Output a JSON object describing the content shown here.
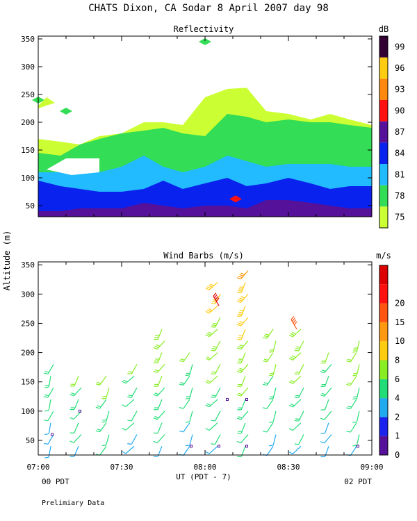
{
  "header": {
    "title": "CHATS Dixon, CA  Sodar   8 April 2007  day  98",
    "ylabel": "Altitude (m)",
    "xlabel": "UT  (PDT - 7)",
    "left_local": "00 PDT",
    "right_local": "02 PDT",
    "footnote": "Prelimiary Data"
  },
  "chart_data": [
    {
      "type": "heatmap",
      "title": "Reflectivity",
      "colorbar_unit": "dB",
      "x_ticks": [
        "07:00",
        "07:30",
        "08:00",
        "08:30",
        "09:00"
      ],
      "xlim": [
        "07:00",
        "09:00"
      ],
      "y_ticks": [
        50,
        100,
        150,
        200,
        250,
        300,
        350
      ],
      "ylim": [
        30,
        355
      ],
      "colorbar_levels": [
        75,
        78,
        81,
        84,
        87,
        90,
        93,
        96,
        99
      ],
      "colorbar_colors": [
        "#ccff33",
        "#33dd55",
        "#22bbff",
        "#0a22ee",
        "#551199",
        "#ff1111",
        "#ff8811",
        "#ffcc11",
        "#330033"
      ],
      "times": [
        "07:00",
        "07:08",
        "07:15",
        "07:22",
        "07:30",
        "07:38",
        "07:45",
        "07:52",
        "08:00",
        "08:08",
        "08:15",
        "08:22",
        "08:30",
        "08:38",
        "08:45",
        "08:52",
        "09:00"
      ],
      "layers": [
        {
          "level": 75,
          "top": [
            170,
            165,
            160,
            175,
            180,
            200,
            200,
            195,
            245,
            260,
            262,
            220,
            215,
            205,
            215,
            205,
            195
          ]
        },
        {
          "level": 78,
          "top": [
            145,
            140,
            160,
            170,
            180,
            185,
            190,
            180,
            175,
            215,
            210,
            200,
            205,
            200,
            200,
            195,
            190
          ]
        },
        {
          "level": 81,
          "top": [
            110,
            110,
            115,
            110,
            120,
            140,
            120,
            110,
            120,
            140,
            130,
            120,
            125,
            125,
            125,
            120,
            120
          ]
        },
        {
          "level": 84,
          "top": [
            95,
            85,
            80,
            75,
            75,
            80,
            95,
            80,
            90,
            100,
            85,
            90,
            100,
            90,
            80,
            85,
            85
          ]
        },
        {
          "level": 87,
          "top": [
            40,
            40,
            45,
            45,
            45,
            55,
            50,
            45,
            50,
            50,
            45,
            60,
            60,
            55,
            50,
            45,
            45
          ]
        }
      ],
      "patches": [
        {
          "level": 84,
          "time": "07:45",
          "alt": 65
        },
        {
          "level": 90,
          "time": "08:11",
          "alt": 62
        },
        {
          "level": 78,
          "time": "08:00",
          "alt": 345
        },
        {
          "level": 78,
          "time": "07:00",
          "alt": 240
        },
        {
          "level": 78,
          "time": "07:10",
          "alt": 220
        }
      ]
    },
    {
      "type": "scatter",
      "subtype": "wind-barbs",
      "title": "Wind Barbs (m/s)",
      "colorbar_unit": "m/s",
      "x_ticks": [
        "07:00",
        "07:30",
        "08:00",
        "08:30",
        "09:00"
      ],
      "xlim": [
        "07:00",
        "09:00"
      ],
      "y_ticks": [
        50,
        100,
        150,
        200,
        250,
        300,
        350
      ],
      "ylim": [
        25,
        355
      ],
      "colorbar_levels": [
        0,
        1,
        2,
        4,
        6,
        8,
        10,
        15,
        20
      ],
      "colorbar_colors": [
        "#551199",
        "#1a22ee",
        "#22aaee",
        "#22dd77",
        "#88ee22",
        "#ffcc11",
        "#ff9911",
        "#ff5511",
        "#ff1111",
        "#dd0000"
      ],
      "profiles": [
        "07:05",
        "07:15",
        "07:25",
        "07:35",
        "07:45",
        "07:55",
        "08:05",
        "08:15",
        "08:25",
        "08:35",
        "08:45",
        "08:55"
      ],
      "max_alt": [
        180,
        160,
        170,
        190,
        250,
        200,
        330,
        340,
        250,
        240,
        200,
        230
      ],
      "outliers": [
        {
          "time": "08:05",
          "alt": 280,
          "speed": 20
        },
        {
          "time": "08:33",
          "alt": 240,
          "speed": 10
        }
      ]
    }
  ]
}
